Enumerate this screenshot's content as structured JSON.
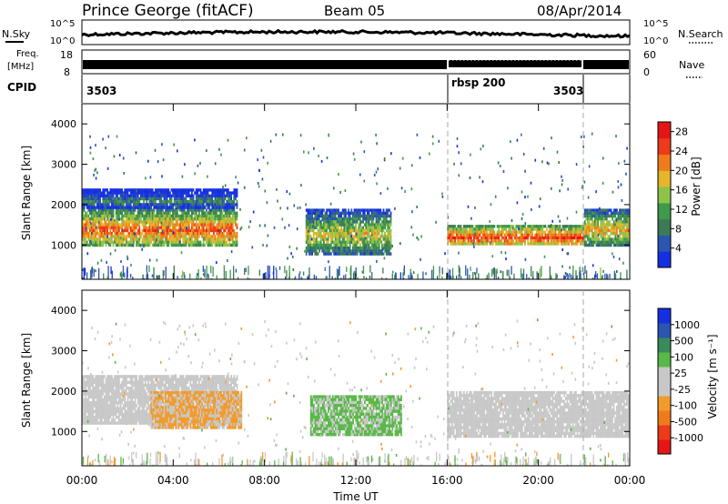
{
  "header": {
    "station": "Prince George (fitACF)",
    "beam": "Beam 05",
    "date": "08/Apr/2014"
  },
  "strip_labels": {
    "nsky": "N.Sky",
    "nsearch": "N.Search",
    "freq_line1": "Freq.",
    "freq_line2": "[MHz]",
    "nave": "Nave",
    "cpid": "CPID",
    "noise_top": "10^5",
    "noise_bottom": "10^0",
    "freq_top": "18",
    "freq_bottom": "8",
    "nave_top": "60",
    "nave_bottom": "0"
  },
  "cpid_labels": [
    "3503",
    "rbsp 200",
    "3503"
  ],
  "colors": {
    "power_scale": [
      "#1530e0",
      "#2a55b0",
      "#3d7a55",
      "#3f9a4a",
      "#8ec24a",
      "#e5b52a",
      "#ee7c1d",
      "#ec3a1b",
      "#e61515"
    ],
    "velocity_scale": [
      "#e61515",
      "#ec3a1b",
      "#ee7c1d",
      "#f29b2d",
      "#c8c8c8",
      "#c8c8c8",
      "#58b848",
      "#3a8a5a",
      "#2a55b0",
      "#1530e0"
    ],
    "ground_scatter": "#c8c8c8"
  },
  "chart_data": [
    {
      "type": "heatmap",
      "panel": "power",
      "ylabel": "Slant Range [km]",
      "yticks": [
        "1000",
        "2000",
        "3000",
        "4000"
      ],
      "ylim": [
        150,
        4500
      ],
      "colorbar_label": "Power [dB]",
      "colorbar_ticks": [
        "4",
        "8",
        "12",
        "16",
        "20",
        "24",
        "28"
      ],
      "colorbar_range": [
        0,
        30
      ],
      "regions": [
        {
          "t_start": 0.0,
          "t_end": 6.8,
          "range_start": 1000,
          "range_end": 1900,
          "power": 24
        },
        {
          "t_start": 0.0,
          "t_end": 6.8,
          "range_start": 1900,
          "range_end": 2400,
          "power": 10
        },
        {
          "t_start": 9.8,
          "t_end": 13.5,
          "range_start": 800,
          "range_end": 1900,
          "power": 18
        },
        {
          "t_start": 16.0,
          "t_end": 22.0,
          "range_start": 1000,
          "range_end": 1500,
          "power": 26
        },
        {
          "t_start": 22.0,
          "t_end": 24.0,
          "range_start": 1000,
          "range_end": 1900,
          "power": 20
        }
      ]
    },
    {
      "type": "heatmap",
      "panel": "velocity",
      "ylabel": "Slant Range [km]",
      "yticks": [
        "1000",
        "2000",
        "3000",
        "4000"
      ],
      "ylim": [
        150,
        4500
      ],
      "xlabel": "Time UT",
      "xticks": [
        "00:00",
        "04:00",
        "08:00",
        "12:00",
        "16:00",
        "20:00",
        "00:00"
      ],
      "xlim": [
        0,
        24
      ],
      "colorbar_label": "Velocity [m s⁻¹]",
      "colorbar_ticks": [
        "1000",
        "500",
        "100",
        "25",
        "-25",
        "-100",
        "-500",
        "-1000"
      ],
      "regions": [
        {
          "t_start": 0.0,
          "t_end": 6.8,
          "range_start": 1200,
          "range_end": 2400,
          "velocity": 0
        },
        {
          "t_start": 3.0,
          "t_end": 7.0,
          "range_start": 1100,
          "range_end": 2000,
          "velocity": -300
        },
        {
          "t_start": 10.0,
          "t_end": 14.0,
          "range_start": 900,
          "range_end": 1900,
          "velocity": 300
        },
        {
          "t_start": 16.0,
          "t_end": 24.0,
          "range_start": 900,
          "range_end": 2000,
          "velocity": 0
        }
      ]
    }
  ]
}
